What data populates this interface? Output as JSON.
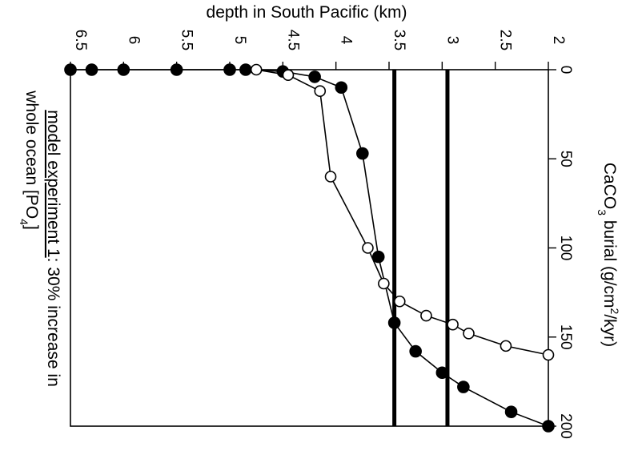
{
  "chart_data": {
    "type": "line",
    "title": "",
    "xlabel": "CaCO3 burial (g/cm2/kyr)",
    "xlabel_parts": {
      "main": "CaCO",
      "sub1": "3",
      "mid": " burial (g/cm",
      "sup": "2",
      "end": "/kyr)"
    },
    "ylabel": "depth in South Pacific (km)",
    "xlim": [
      0,
      200
    ],
    "ylim": [
      2,
      6.5
    ],
    "x_ticks": [
      "0",
      "50",
      "100",
      "150",
      "200"
    ],
    "x_tick_values": [
      0,
      50,
      100,
      150,
      200
    ],
    "y_ticks": [
      "2",
      "2.5",
      "3",
      "3.5",
      "4",
      "4.5",
      "5",
      "5.5",
      "6",
      "6.5"
    ],
    "y_tick_values": [
      2,
      2.5,
      3,
      3.5,
      4,
      4.5,
      5,
      5.5,
      6,
      6.5
    ],
    "grid": false,
    "orientation": "rotated 90 degrees clockwise",
    "reference_lines": [
      {
        "orientation": "horizontal",
        "y": 2.95
      },
      {
        "orientation": "horizontal",
        "y": 3.45
      }
    ],
    "series": [
      {
        "marker": "filled-circle",
        "points": [
          {
            "x": 200,
            "y": 2.0
          },
          {
            "x": 192,
            "y": 2.35
          },
          {
            "x": 178,
            "y": 2.8
          },
          {
            "x": 170,
            "y": 3.0
          },
          {
            "x": 158,
            "y": 3.25
          },
          {
            "x": 142,
            "y": 3.45
          },
          {
            "x": 105,
            "y": 3.6
          },
          {
            "x": 47,
            "y": 3.75
          },
          {
            "x": 10,
            "y": 3.95
          },
          {
            "x": 4,
            "y": 4.2
          },
          {
            "x": 1,
            "y": 4.5
          },
          {
            "x": 0,
            "y": 4.85
          },
          {
            "x": 0,
            "y": 5.0
          },
          {
            "x": 0,
            "y": 5.5
          },
          {
            "x": 0,
            "y": 6.0
          },
          {
            "x": 0,
            "y": 6.3
          },
          {
            "x": 0,
            "y": 6.5
          }
        ]
      },
      {
        "marker": "open-circle",
        "points": [
          {
            "x": 160,
            "y": 2.0
          },
          {
            "x": 155,
            "y": 2.4
          },
          {
            "x": 148,
            "y": 2.75
          },
          {
            "x": 143,
            "y": 2.9
          },
          {
            "x": 138,
            "y": 3.15
          },
          {
            "x": 130,
            "y": 3.4
          },
          {
            "x": 120,
            "y": 3.55
          },
          {
            "x": 100,
            "y": 3.7
          },
          {
            "x": 60,
            "y": 4.05
          },
          {
            "x": 12,
            "y": 4.15
          },
          {
            "x": 3,
            "y": 4.45
          },
          {
            "x": 0,
            "y": 4.75
          }
        ]
      }
    ]
  },
  "caption": {
    "underlined": "model experiment 1",
    "rest_line1": ": 30% increase in",
    "line2_main": "whole ocean [PO",
    "line2_sub": "4",
    "line2_end": "]"
  }
}
